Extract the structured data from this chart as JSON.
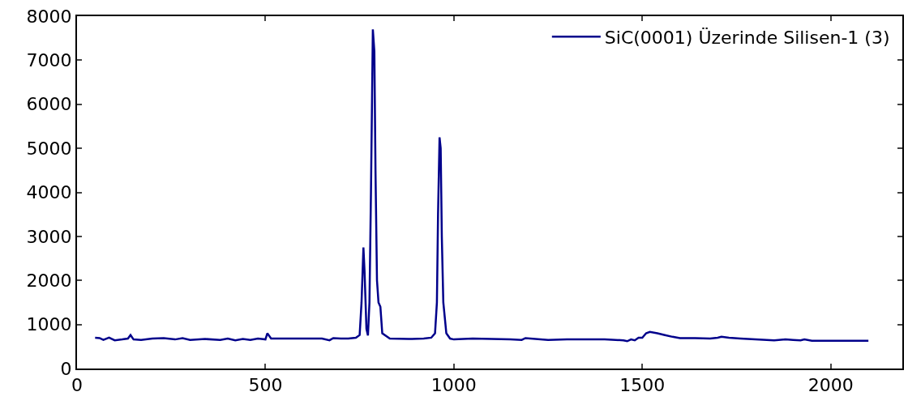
{
  "chart_data": {
    "type": "line",
    "xlim": [
      0,
      2190
    ],
    "ylim": [
      0,
      8000
    ],
    "xticks": [
      0,
      500,
      1000,
      1500,
      2000
    ],
    "yticks": [
      0,
      1000,
      2000,
      3000,
      4000,
      5000,
      6000,
      7000,
      8000
    ],
    "legend": "top right",
    "marker": "none",
    "line_style": "solid",
    "series": [
      {
        "name": "SiC(0001) Üzerinde Silisen-1 (3)",
        "color": "#00008b",
        "x": [
          48,
          60,
          70,
          85,
          100,
          120,
          135,
          142,
          150,
          170,
          200,
          230,
          260,
          280,
          300,
          340,
          380,
          400,
          420,
          440,
          460,
          480,
          500,
          505,
          515,
          540,
          600,
          650,
          670,
          680,
          700,
          720,
          740,
          750,
          755,
          760,
          763,
          768,
          772,
          776,
          780,
          785,
          789,
          792,
          796,
          800,
          805,
          810,
          830,
          880,
          920,
          940,
          950,
          955,
          958,
          962,
          965,
          968,
          972,
          980,
          990,
          1000,
          1050,
          1100,
          1150,
          1180,
          1190,
          1250,
          1300,
          1400,
          1450,
          1460,
          1470,
          1480,
          1490,
          1500,
          1510,
          1520,
          1540,
          1560,
          1580,
          1600,
          1640,
          1680,
          1700,
          1710,
          1730,
          1760,
          1800,
          1830,
          1850,
          1880,
          1900,
          1920,
          1930,
          1950,
          2000,
          2050,
          2100
        ],
        "values": [
          700,
          690,
          650,
          700,
          640,
          660,
          680,
          760,
          660,
          650,
          680,
          690,
          660,
          690,
          650,
          670,
          650,
          680,
          640,
          670,
          650,
          680,
          660,
          800,
          680,
          680,
          680,
          680,
          640,
          690,
          680,
          680,
          700,
          760,
          1500,
          2750,
          2200,
          900,
          750,
          1500,
          4000,
          7700,
          7200,
          4500,
          2000,
          1500,
          1400,
          800,
          680,
          670,
          680,
          700,
          800,
          1500,
          3500,
          5250,
          5000,
          3000,
          1500,
          800,
          680,
          660,
          680,
          670,
          660,
          650,
          690,
          650,
          660,
          660,
          640,
          620,
          660,
          640,
          700,
          700,
          800,
          830,
          800,
          760,
          720,
          690,
          690,
          680,
          700,
          720,
          700,
          680,
          660,
          650,
          640,
          660,
          650,
          640,
          660,
          630,
          630,
          630,
          630
        ]
      }
    ]
  }
}
